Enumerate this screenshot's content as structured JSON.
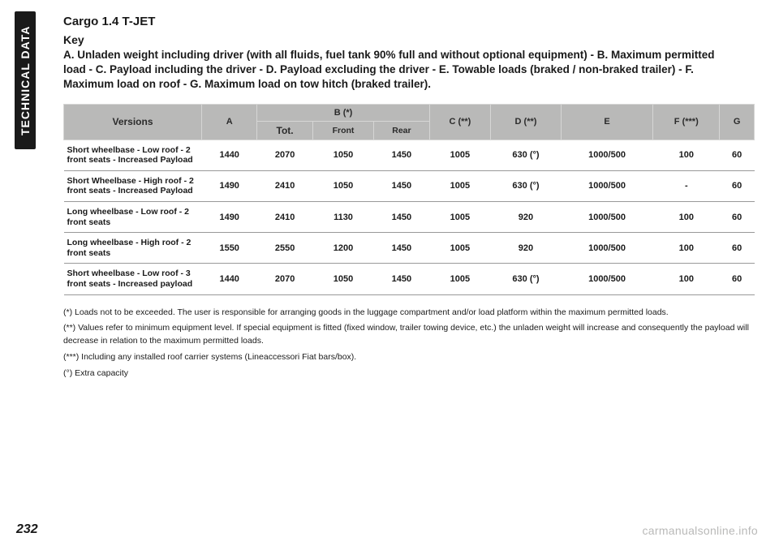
{
  "side_tab": "TECHNICAL DATA",
  "title": "Cargo 1.4 T-JET",
  "key_label": "Key",
  "key_text": "A. Unladen weight including driver (with all fluids, fuel tank 90% full and without optional equipment) - B. Maximum permitted load - C. Payload including the driver - D. Payload excluding the driver - E. Towable loads (braked / non-braked trailer) - F. Maximum load on roof - G. Maximum load on tow hitch (braked trailer).",
  "table": {
    "headers": {
      "versions": "Versions",
      "a": "A",
      "b": "B (*)",
      "b_sub": {
        "tot": "Tot.",
        "front": "Front",
        "rear": "Rear"
      },
      "c": "C (**)",
      "d": "D (**)",
      "e": "E",
      "f": "F (***)",
      "g": "G"
    },
    "rows": [
      {
        "version": "Short wheelbase - Low roof - 2 front seats - Increased Payload",
        "a": "1440",
        "tot": "2070",
        "front": "1050",
        "rear": "1450",
        "c": "1005",
        "d": "630 (°)",
        "e": "1000/500",
        "f": "100",
        "g": "60"
      },
      {
        "version": "Short Wheelbase - High roof - 2 front seats - Increased Payload",
        "a": "1490",
        "tot": "2410",
        "front": "1050",
        "rear": "1450",
        "c": "1005",
        "d": "630 (°)",
        "e": "1000/500",
        "f": "-",
        "g": "60"
      },
      {
        "version": "Long wheelbase - Low roof - 2 front seats",
        "a": "1490",
        "tot": "2410",
        "front": "1130",
        "rear": "1450",
        "c": "1005",
        "d": "920",
        "e": "1000/500",
        "f": "100",
        "g": "60"
      },
      {
        "version": "Long wheelbase - High roof - 2 front seats",
        "a": "1550",
        "tot": "2550",
        "front": "1200",
        "rear": "1450",
        "c": "1005",
        "d": "920",
        "e": "1000/500",
        "f": "100",
        "g": "60"
      },
      {
        "version": "Short wheelbase - Low roof - 3 front seats - Increased payload",
        "a": "1440",
        "tot": "2070",
        "front": "1050",
        "rear": "1450",
        "c": "1005",
        "d": "630 (°)",
        "e": "1000/500",
        "f": "100",
        "g": "60"
      }
    ]
  },
  "footnotes": [
    "(*) Loads not to be exceeded. The user is responsible for arranging goods in the luggage compartment and/or load platform within the maximum permitted loads.",
    "(**) Values refer to minimum equipment level. If special equipment is fitted (fixed window, trailer towing device, etc.) the unladen weight will increase and consequently the payload will decrease in relation to the maximum permitted loads.",
    "(***) Including any installed roof carrier systems (Lineaccessori Fiat bars/box).",
    "(°) Extra capacity"
  ],
  "page_number": "232",
  "brand": "carmanualsonline.info",
  "colors": {
    "header_bg": "#b9b9b8",
    "text": "#1a1a1a",
    "brand": "#b9b9b8"
  }
}
